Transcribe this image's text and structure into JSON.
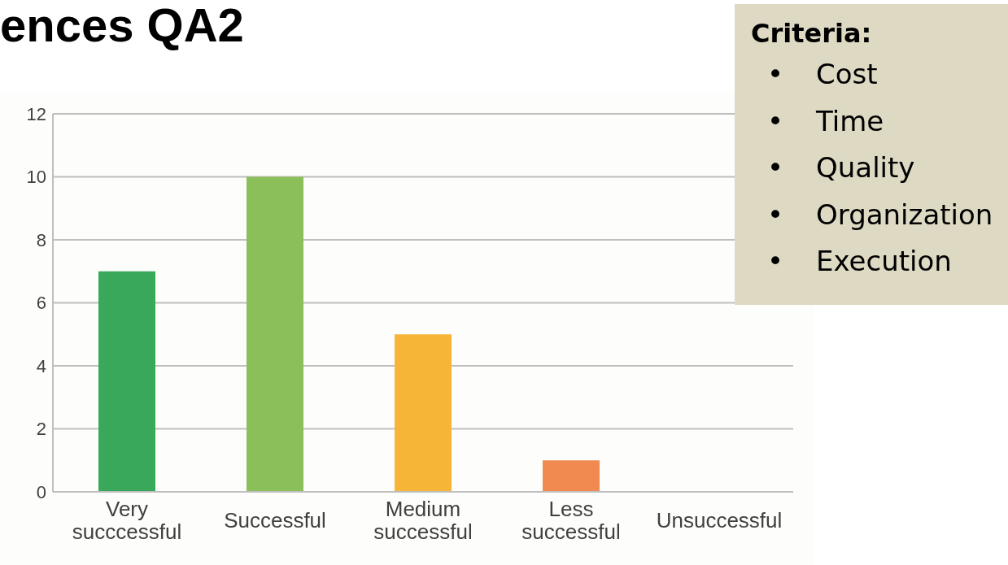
{
  "chart_data": {
    "type": "bar",
    "title": "ences QA2",
    "categories": [
      "Very succcessful",
      "Successful",
      "Medium successful",
      "Less successful",
      "Unsuccessful"
    ],
    "values": [
      7,
      10,
      5,
      1,
      0
    ],
    "colors": [
      "#3aa85a",
      "#8bbf5a",
      "#f7b538",
      "#f08a50",
      "#c0504d"
    ],
    "ylim": [
      0,
      12
    ],
    "yticks": [
      0,
      2,
      4,
      6,
      8,
      10,
      12
    ],
    "grid": "y",
    "annotations": [
      "Criteria:",
      "• Cost",
      "• Time",
      "• Quality",
      "• Organization",
      "• Execution"
    ]
  }
}
